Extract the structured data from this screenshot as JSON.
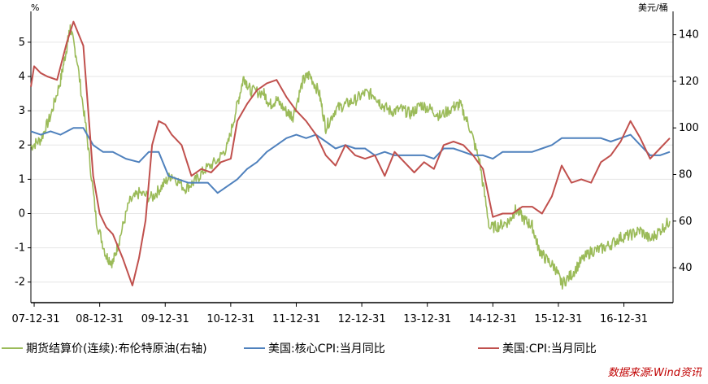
{
  "chart_data": {
    "type": "line",
    "left_unit": "%",
    "right_unit": "美元/桶",
    "x_ticks": [
      "07-12-31",
      "08-12-31",
      "09-12-31",
      "10-12-31",
      "11-12-31",
      "12-12-31",
      "13-12-31",
      "14-12-31",
      "15-12-31",
      "16-12-31"
    ],
    "ylim_left": [
      -2.6,
      5.9
    ],
    "yticks_left": [
      -2,
      -1,
      0,
      1,
      2,
      3,
      4,
      5
    ],
    "ylim_right": [
      25,
      150
    ],
    "yticks_right": [
      40,
      60,
      80,
      100,
      120,
      140
    ],
    "xlim": [
      2007.95,
      2017.75
    ],
    "series": [
      {
        "name": "期货结算价(连续):布伦特原油(右轴)",
        "axis": "right",
        "color": "#9bbb59",
        "x": [
          2007.95,
          2008.1,
          2008.25,
          2008.4,
          2008.5,
          2008.55,
          2008.65,
          2008.8,
          2008.95,
          2009.1,
          2009.2,
          2009.3,
          2009.45,
          2009.6,
          2009.8,
          2009.95,
          2010.1,
          2010.3,
          2010.45,
          2010.6,
          2010.8,
          2010.95,
          2011.1,
          2011.2,
          2011.3,
          2011.5,
          2011.6,
          2011.7,
          2011.85,
          2011.95,
          2012.1,
          2012.2,
          2012.35,
          2012.45,
          2012.6,
          2012.75,
          2012.9,
          2013.05,
          2013.2,
          2013.3,
          2013.45,
          2013.6,
          2013.75,
          2013.9,
          2014.05,
          2014.2,
          2014.4,
          2014.5,
          2014.65,
          2014.8,
          2014.95,
          2015.1,
          2015.25,
          2015.35,
          2015.5,
          2015.6,
          2015.7,
          2015.8,
          2015.95,
          2016.05,
          2016.2,
          2016.35,
          2016.5,
          2016.65,
          2016.8,
          2016.95,
          2017.1,
          2017.25,
          2017.4,
          2017.55,
          2017.7
        ],
        "values": [
          92,
          95,
          105,
          120,
          135,
          143,
          130,
          98,
          60,
          45,
          42,
          52,
          68,
          72,
          70,
          75,
          80,
          74,
          77,
          82,
          86,
          92,
          110,
          122,
          116,
          115,
          110,
          112,
          107,
          105,
          120,
          123,
          115,
          100,
          108,
          110,
          112,
          115,
          114,
          110,
          107,
          108,
          106,
          110,
          108,
          105,
          109,
          110,
          100,
          85,
          57,
          58,
          60,
          65,
          60,
          58,
          48,
          44,
          40,
          33,
          37,
          43,
          47,
          48,
          50,
          53,
          54,
          56,
          52,
          56,
          60
        ]
      },
      {
        "name": "美国:核心CPI:当月同比",
        "axis": "left",
        "color": "#4f81bd",
        "x": [
          2007.95,
          2008.1,
          2008.25,
          2008.4,
          2008.6,
          2008.75,
          2008.9,
          2009.05,
          2009.2,
          2009.4,
          2009.6,
          2009.75,
          2009.9,
          2010.05,
          2010.2,
          2010.35,
          2010.5,
          2010.65,
          2010.8,
          2010.95,
          2011.1,
          2011.25,
          2011.4,
          2011.55,
          2011.7,
          2011.85,
          2012.0,
          2012.15,
          2012.3,
          2012.45,
          2012.6,
          2012.75,
          2012.9,
          2013.05,
          2013.2,
          2013.35,
          2013.5,
          2013.65,
          2013.8,
          2013.95,
          2014.1,
          2014.25,
          2014.4,
          2014.55,
          2014.7,
          2014.85,
          2015.0,
          2015.15,
          2015.3,
          2015.45,
          2015.6,
          2015.75,
          2015.9,
          2016.05,
          2016.2,
          2016.35,
          2016.5,
          2016.65,
          2016.8,
          2016.95,
          2017.1,
          2017.25,
          2017.4,
          2017.55,
          2017.7
        ],
        "values": [
          2.4,
          2.3,
          2.4,
          2.3,
          2.5,
          2.5,
          2.0,
          1.8,
          1.8,
          1.6,
          1.5,
          1.8,
          1.8,
          1.1,
          1.0,
          0.9,
          0.9,
          0.9,
          0.6,
          0.8,
          1.0,
          1.3,
          1.5,
          1.8,
          2.0,
          2.2,
          2.3,
          2.2,
          2.3,
          2.1,
          1.9,
          2.0,
          1.9,
          1.9,
          1.7,
          1.8,
          1.7,
          1.7,
          1.7,
          1.7,
          1.6,
          1.9,
          1.9,
          1.8,
          1.7,
          1.7,
          1.6,
          1.8,
          1.8,
          1.8,
          1.8,
          1.9,
          2.0,
          2.2,
          2.2,
          2.2,
          2.2,
          2.2,
          2.1,
          2.2,
          2.3,
          2.0,
          1.7,
          1.7,
          1.8
        ]
      },
      {
        "name": "美国:CPI:当月同比",
        "axis": "left",
        "color": "#c0504d",
        "x": [
          2007.95,
          2008.0,
          2008.1,
          2008.2,
          2008.35,
          2008.5,
          2008.6,
          2008.75,
          2008.9,
          2009.0,
          2009.1,
          2009.2,
          2009.35,
          2009.5,
          2009.6,
          2009.7,
          2009.8,
          2009.9,
          2010.0,
          2010.1,
          2010.25,
          2010.4,
          2010.55,
          2010.7,
          2010.85,
          2011.0,
          2011.1,
          2011.25,
          2011.4,
          2011.55,
          2011.7,
          2011.85,
          2012.0,
          2012.15,
          2012.3,
          2012.45,
          2012.6,
          2012.75,
          2012.9,
          2013.05,
          2013.2,
          2013.35,
          2013.5,
          2013.65,
          2013.8,
          2013.95,
          2014.1,
          2014.25,
          2014.4,
          2014.55,
          2014.7,
          2014.85,
          2015.0,
          2015.15,
          2015.3,
          2015.45,
          2015.6,
          2015.75,
          2015.9,
          2016.05,
          2016.2,
          2016.35,
          2016.5,
          2016.65,
          2016.8,
          2016.95,
          2017.1,
          2017.25,
          2017.4,
          2017.55,
          2017.7
        ],
        "values": [
          3.7,
          4.3,
          4.1,
          4.0,
          3.9,
          5.0,
          5.6,
          4.9,
          1.1,
          0.0,
          -0.4,
          -0.6,
          -1.3,
          -2.1,
          -1.3,
          -0.2,
          2.0,
          2.7,
          2.6,
          2.3,
          2.0,
          1.1,
          1.3,
          1.2,
          1.5,
          1.6,
          2.7,
          3.2,
          3.6,
          3.8,
          3.9,
          3.4,
          3.0,
          2.7,
          2.3,
          1.7,
          1.4,
          2.0,
          1.7,
          1.6,
          1.7,
          1.1,
          1.8,
          1.5,
          1.2,
          1.5,
          1.3,
          2.0,
          2.1,
          2.0,
          1.7,
          1.3,
          -0.1,
          0.0,
          0.0,
          0.2,
          0.2,
          0.0,
          0.5,
          1.4,
          0.9,
          1.0,
          0.9,
          1.5,
          1.7,
          2.1,
          2.7,
          2.2,
          1.6,
          1.9,
          2.2
        ]
      }
    ],
    "legend_position": "bottom",
    "grid": "horizontal"
  },
  "legend": [
    {
      "label": "期货结算价(连续):布伦特原油(右轴)",
      "color": "#9bbb59"
    },
    {
      "label": "美国:核心CPI:当月同比",
      "color": "#4f81bd"
    },
    {
      "label": "美国:CPI:当月同比",
      "color": "#c0504d"
    }
  ],
  "source": "数据来源:Wind资讯"
}
